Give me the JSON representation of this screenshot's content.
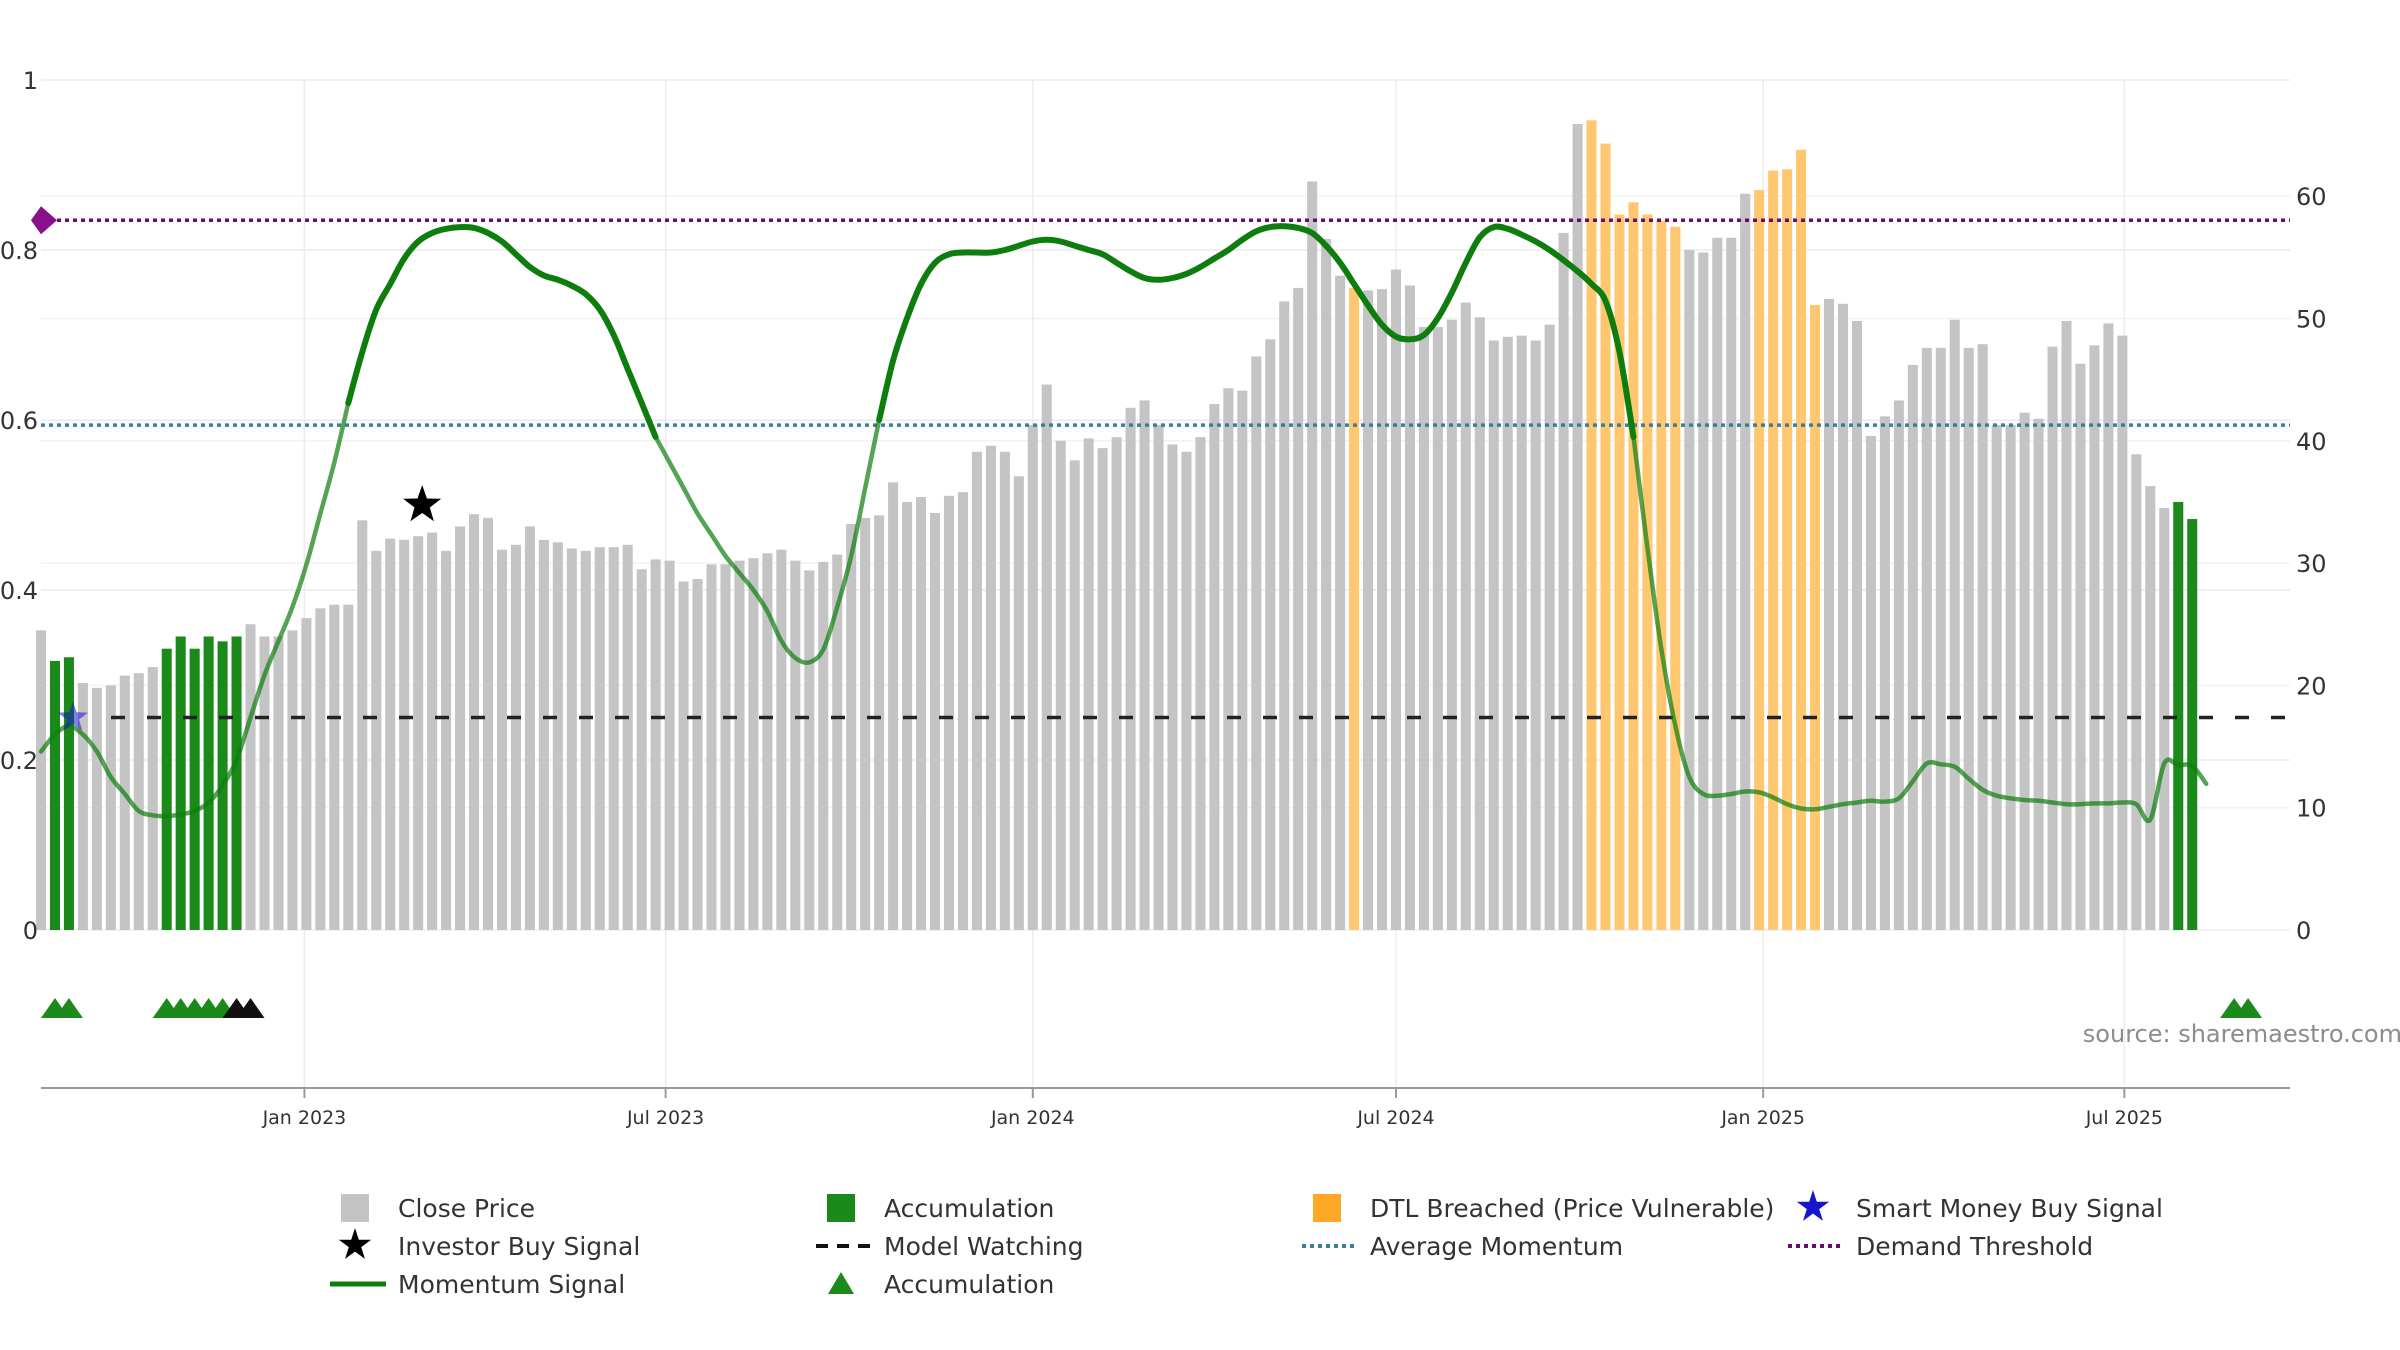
{
  "chart_data": {
    "type": "bar",
    "x_axis": {
      "ticks": [
        "Jan 2023",
        "Jul 2023",
        "Jan 2024",
        "Jul 2024",
        "Jan 2025",
        "Jul 2025"
      ],
      "tick_dates": [
        "2023-01-01",
        "2023-07-01",
        "2024-01-01",
        "2024-07-01",
        "2025-01-01",
        "2025-07-01"
      ],
      "start": "2022-08-22",
      "end": "2025-09-22"
    },
    "left_axis": {
      "ticks": [
        "0",
        "0.2",
        "0.4",
        "0.6",
        "0.8",
        "1"
      ],
      "range": [
        0,
        1
      ]
    },
    "right_axis": {
      "ticks": [
        "0",
        "10",
        "20",
        "30",
        "40",
        "50",
        "60"
      ],
      "range": [
        0,
        69.5
      ]
    },
    "grid": true,
    "source": "source: sharemaestro.com",
    "legend_position": "bottom",
    "colors": {
      "close": "#c4c4c4",
      "accumulation": "#1b8a1b",
      "dtl": "#ffc870",
      "momentum": "#0d7d0d",
      "avg_momentum": "#3a7ea1",
      "demand": "#6d0a6d",
      "watching": "#222222",
      "smart_money": "#1515cc"
    },
    "bar_start": "2022-08-22",
    "bar_interval_days": 7,
    "series": [
      {
        "name": "Close Price",
        "axis": "right",
        "values": [
          24.5,
          22.0,
          22.3,
          20.2,
          19.8,
          20.0,
          20.8,
          21.0,
          21.5,
          23.0,
          24.0,
          23.0,
          24.0,
          23.6,
          24.0,
          25.0,
          24.0,
          24.0,
          24.5,
          25.5,
          26.3,
          26.6,
          26.6,
          33.5,
          31.0,
          32.0,
          31.9,
          32.2,
          32.5,
          31.0,
          33.0,
          34.0,
          33.7,
          31.1,
          31.5,
          33.0,
          31.9,
          31.7,
          31.2,
          31.0,
          31.3,
          31.3,
          31.5,
          29.5,
          30.3,
          30.2,
          28.5,
          28.7,
          29.9,
          29.9,
          30.2,
          30.4,
          30.8,
          31.1,
          30.2,
          29.4,
          30.1,
          30.7,
          33.2,
          33.7,
          33.9,
          36.6,
          35.0,
          35.4,
          34.1,
          35.5,
          35.8,
          39.1,
          39.6,
          39.1,
          37.1,
          41.3,
          44.6,
          40.0,
          38.4,
          40.2,
          39.4,
          40.3,
          42.7,
          43.3,
          41.3,
          39.7,
          39.1,
          40.3,
          43.0,
          44.3,
          44.1,
          46.9,
          48.3,
          51.4,
          52.5,
          61.2,
          56.5,
          53.5,
          52.5,
          52.3,
          52.4,
          54.0,
          52.7,
          49.3,
          49.3,
          49.9,
          51.3,
          50.1,
          48.2,
          48.5,
          48.6,
          48.2,
          49.5,
          57.0,
          65.9,
          66.2,
          64.3,
          58.5,
          59.5,
          58.5,
          58.0,
          57.5,
          55.6,
          55.4,
          56.6,
          56.6,
          60.2,
          60.5,
          62.1,
          62.2,
          63.8,
          51.1,
          51.6,
          51.2,
          49.8,
          40.4,
          42.0,
          43.3,
          46.2,
          47.6,
          47.6,
          49.9,
          47.6,
          47.9,
          41.3,
          41.3,
          42.3,
          41.8,
          47.7,
          49.8,
          46.3,
          47.8,
          49.6,
          48.6,
          38.9,
          36.3,
          34.5,
          35.0,
          33.6
        ],
        "special": {
          "Accumulation": [
            1,
            2,
            9,
            10,
            11,
            12,
            13,
            14,
            153,
            154
          ],
          "DTL Breached (Price Vulnerable)": [
            94,
            111,
            112,
            113,
            114,
            115,
            116,
            117,
            123,
            124,
            125,
            126,
            127
          ]
        }
      },
      {
        "name": "Momentum Signal",
        "axis": "left",
        "values": [
          0.21,
          0.23,
          0.24,
          0.23,
          0.21,
          0.18,
          0.16,
          0.14,
          0.135,
          0.134,
          0.136,
          0.14,
          0.15,
          0.17,
          0.2,
          0.25,
          0.3,
          0.34,
          0.38,
          0.43,
          0.49,
          0.55,
          0.62,
          0.68,
          0.73,
          0.76,
          0.79,
          0.81,
          0.82,
          0.825,
          0.827,
          0.826,
          0.82,
          0.81,
          0.795,
          0.78,
          0.77,
          0.765,
          0.758,
          0.748,
          0.73,
          0.7,
          0.66,
          0.62,
          0.58,
          0.55,
          0.52,
          0.49,
          0.465,
          0.44,
          0.42,
          0.4,
          0.375,
          0.34,
          0.32,
          0.315,
          0.33,
          0.38,
          0.44,
          0.52,
          0.6,
          0.67,
          0.72,
          0.76,
          0.785,
          0.795,
          0.797,
          0.797,
          0.797,
          0.8,
          0.805,
          0.81,
          0.812,
          0.81,
          0.805,
          0.8,
          0.795,
          0.785,
          0.775,
          0.767,
          0.765,
          0.767,
          0.772,
          0.78,
          0.79,
          0.8,
          0.812,
          0.822,
          0.827,
          0.828,
          0.826,
          0.82,
          0.805,
          0.785,
          0.76,
          0.735,
          0.712,
          0.698,
          0.695,
          0.7,
          0.72,
          0.75,
          0.785,
          0.815,
          0.827,
          0.825,
          0.818,
          0.81,
          0.8,
          0.788,
          0.775,
          0.76,
          0.74,
          0.68,
          0.58,
          0.45,
          0.33,
          0.24,
          0.18,
          0.16,
          0.158,
          0.16,
          0.163,
          0.162,
          0.156,
          0.148,
          0.143,
          0.142,
          0.145,
          0.148,
          0.15,
          0.152,
          0.151,
          0.155,
          0.175,
          0.196,
          0.195,
          0.192,
          0.178,
          0.165,
          0.158,
          0.155,
          0.153,
          0.152,
          0.15,
          0.148,
          0.148,
          0.149,
          0.149,
          0.15,
          0.148,
          0.13,
          0.196,
          0.194,
          0.193,
          0.172
        ]
      },
      {
        "name": "Average Momentum",
        "axis": "left",
        "value": 0.594
      },
      {
        "name": "Demand Threshold",
        "axis": "left",
        "value": 0.835
      },
      {
        "name": "Model Watching",
        "axis": "left",
        "value": 0.25
      },
      {
        "name": "Investor Buy Signal",
        "axis": "left",
        "points": [
          {
            "x": "2023-03-01",
            "y": 0.5
          }
        ]
      },
      {
        "name": "Smart Money Buy Signal",
        "axis": "left",
        "points": [
          {
            "x": "2022-09-07",
            "y": 0.25
          }
        ]
      },
      {
        "name": "Accumulation",
        "lane": "marker",
        "markers": [
          {
            "x": "2022-08-29",
            "color": "#1b8a1b"
          },
          {
            "x": "2022-09-05",
            "color": "#1b8a1b"
          },
          {
            "x": "2022-10-24",
            "color": "#1b8a1b"
          },
          {
            "x": "2022-10-31",
            "color": "#1b8a1b"
          },
          {
            "x": "2022-11-07",
            "color": "#1b8a1b"
          },
          {
            "x": "2022-11-14",
            "color": "#1b8a1b"
          },
          {
            "x": "2022-11-21",
            "color": "#1b8a1b"
          },
          {
            "x": "2022-11-28",
            "color": "#111111"
          },
          {
            "x": "2022-12-05",
            "color": "#111111"
          },
          {
            "x": "2025-08-25",
            "color": "#1b8a1b"
          },
          {
            "x": "2025-09-01",
            "color": "#1b8a1b"
          }
        ]
      }
    ],
    "legend": [
      {
        "label": "Close Price",
        "symbol": "gray-square"
      },
      {
        "label": "Accumulation",
        "symbol": "green-square"
      },
      {
        "label": "DTL Breached (Price Vulnerable)",
        "symbol": "orange-square"
      },
      {
        "label": "Smart Money Buy Signal",
        "symbol": "blue-star"
      },
      {
        "label": "Investor Buy Signal",
        "symbol": "black-star"
      },
      {
        "label": "Model Watching",
        "symbol": "black-dash-line"
      },
      {
        "label": "Average Momentum",
        "symbol": "blue-dotted-line"
      },
      {
        "label": "Demand Threshold",
        "symbol": "purple-dotted-line"
      },
      {
        "label": "Momentum Signal",
        "symbol": "green-line"
      },
      {
        "label": "Accumulation",
        "symbol": "green-triangle"
      }
    ]
  }
}
